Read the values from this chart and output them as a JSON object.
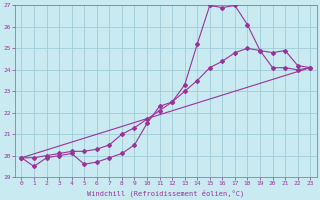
{
  "xlabel": "Windchill (Refroidissement éolien,°C)",
  "bg_color": "#c8eaf0",
  "grid_color": "#a0ccd8",
  "line_color": "#993399",
  "xlim": [
    -0.5,
    23.5
  ],
  "ylim": [
    19,
    27
  ],
  "xticks": [
    0,
    1,
    2,
    3,
    4,
    5,
    6,
    7,
    8,
    9,
    10,
    11,
    12,
    13,
    14,
    15,
    16,
    17,
    18,
    19,
    20,
    21,
    22,
    23
  ],
  "yticks": [
    19,
    20,
    21,
    22,
    23,
    24,
    25,
    26,
    27
  ],
  "line1_x": [
    0,
    1,
    2,
    3,
    4,
    5,
    6,
    7,
    8,
    9,
    10,
    11,
    12,
    13,
    14,
    15,
    16,
    17,
    18,
    19,
    20,
    21,
    22,
    23
  ],
  "line1_y": [
    19.9,
    19.5,
    19.9,
    20.0,
    20.1,
    19.6,
    19.7,
    19.9,
    20.1,
    20.5,
    21.5,
    22.3,
    22.5,
    23.3,
    25.2,
    27.0,
    26.9,
    27.0,
    26.1,
    24.9,
    24.1,
    24.1,
    24.0,
    24.1
  ],
  "line2_x": [
    0,
    1,
    2,
    3,
    4,
    5,
    6,
    7,
    8,
    9,
    10,
    11,
    12,
    13,
    14,
    15,
    16,
    17,
    18,
    19,
    20,
    21,
    22,
    23
  ],
  "line2_y": [
    19.9,
    19.9,
    20.0,
    20.1,
    20.2,
    20.2,
    20.3,
    20.5,
    21.0,
    21.3,
    21.7,
    22.1,
    22.5,
    23.0,
    23.5,
    24.1,
    24.4,
    24.8,
    25.0,
    24.9,
    24.8,
    24.9,
    24.2,
    24.1
  ],
  "line3_x": [
    0,
    23
  ],
  "line3_y": [
    19.9,
    24.1
  ]
}
